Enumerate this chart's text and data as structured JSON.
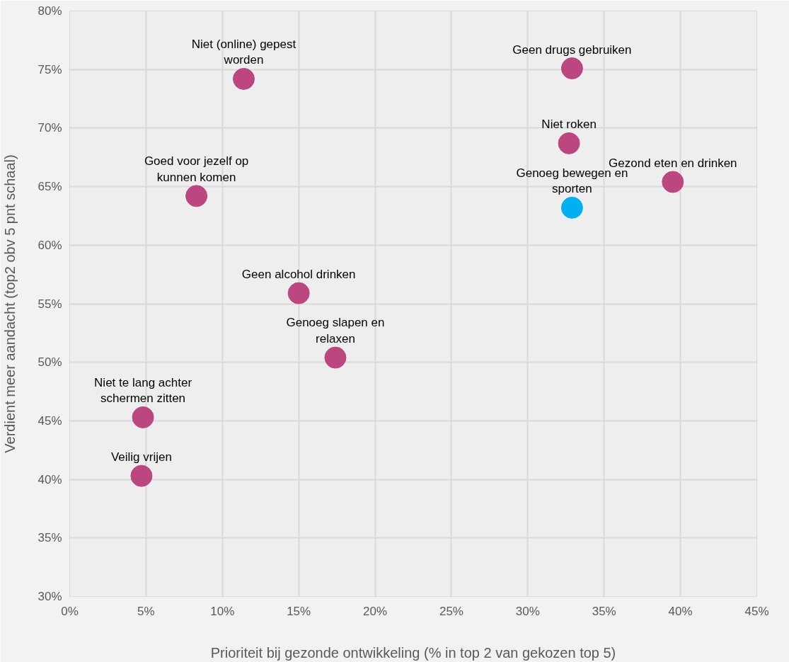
{
  "chart_data": {
    "type": "scatter",
    "xlabel": "Prioriteit bij gezonde ontwikkeling (% in top 2 van gekozen top 5)",
    "ylabel": "Verdient meer aandacht (top2 obv 5 pnt schaal)",
    "xlim": [
      0,
      45
    ],
    "ylim": [
      30,
      80
    ],
    "xticks": [
      {
        "value": 0,
        "label": "0%"
      },
      {
        "value": 5,
        "label": "5%"
      },
      {
        "value": 10,
        "label": "10%"
      },
      {
        "value": 15,
        "label": "15%"
      },
      {
        "value": 20,
        "label": "20%"
      },
      {
        "value": 25,
        "label": "25%"
      },
      {
        "value": 30,
        "label": "30%"
      },
      {
        "value": 35,
        "label": "35%"
      },
      {
        "value": 40,
        "label": "40%"
      },
      {
        "value": 45,
        "label": "45%"
      }
    ],
    "yticks": [
      {
        "value": 30,
        "label": "30%"
      },
      {
        "value": 35,
        "label": "35%"
      },
      {
        "value": 40,
        "label": "40%"
      },
      {
        "value": 45,
        "label": "45%"
      },
      {
        "value": 50,
        "label": "50%"
      },
      {
        "value": 55,
        "label": "55%"
      },
      {
        "value": 60,
        "label": "60%"
      },
      {
        "value": 65,
        "label": "65%"
      },
      {
        "value": 70,
        "label": "70%"
      },
      {
        "value": 75,
        "label": "75%"
      },
      {
        "value": 80,
        "label": "80%"
      }
    ],
    "grid": true,
    "marker": "circle",
    "series": [
      {
        "name": "Niet (online) gepest worden",
        "color": "#bc4680",
        "x": [
          11.4
        ],
        "values": [
          74.2
        ]
      },
      {
        "name": "Geen drugs gebruiken",
        "color": "#bc4680",
        "x": [
          32.9
        ],
        "values": [
          75.1
        ]
      },
      {
        "name": "Niet roken",
        "color": "#bc4680",
        "x": [
          32.7
        ],
        "values": [
          68.7
        ]
      },
      {
        "name": "Gezond eten en drinken",
        "color": "#bc4680",
        "x": [
          39.5
        ],
        "values": [
          65.4
        ]
      },
      {
        "name": "Genoeg bewegen en sporten",
        "color": "#00b0f0",
        "x": [
          32.9
        ],
        "values": [
          63.2
        ]
      },
      {
        "name": "Goed voor jezelf op kunnen komen",
        "color": "#bc4680",
        "x": [
          8.3
        ],
        "values": [
          64.2
        ]
      },
      {
        "name": "Geen alcohol drinken",
        "color": "#bc4680",
        "x": [
          15.0
        ],
        "values": [
          55.9
        ]
      },
      {
        "name": "Genoeg slapen en relaxen",
        "color": "#bc4680",
        "x": [
          17.4
        ],
        "values": [
          50.4
        ]
      },
      {
        "name": "Niet te lang achter schermen zitten",
        "color": "#bc4680",
        "x": [
          4.8
        ],
        "values": [
          45.3
        ]
      },
      {
        "name": "Veilig vrijen",
        "color": "#bc4680",
        "x": [
          4.7
        ],
        "values": [
          40.3
        ]
      }
    ]
  }
}
